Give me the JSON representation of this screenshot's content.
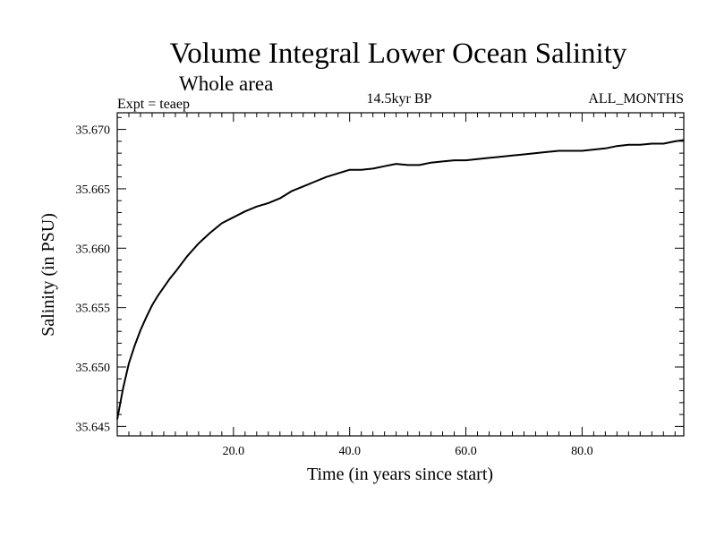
{
  "chart_data": {
    "type": "line",
    "title": "Volume Integral Lower Ocean Salinity",
    "subtitle": "Whole area",
    "experiment_label": "Expt = teaep",
    "period_label": "14.5kyr BP",
    "season_label": "ALL_MONTHS",
    "xlabel": "Time (in years since start)",
    "ylabel": "Salinity (in PSU)",
    "xlim": [
      0,
      97.5
    ],
    "ylim": [
      35.6442,
      35.6714
    ],
    "x_ticks": [
      20.0,
      40.0,
      60.0,
      80.0
    ],
    "x_tick_labels": [
      "20.0",
      "40.0",
      "60.0",
      "80.0"
    ],
    "y_ticks": [
      35.645,
      35.65,
      35.655,
      35.66,
      35.665,
      35.67
    ],
    "y_tick_labels": [
      "35.645",
      "35.650",
      "35.655",
      "35.660",
      "35.665",
      "35.670"
    ],
    "grid": false,
    "line_color": "#000000",
    "series": [
      {
        "name": "Salinity",
        "x": [
          0,
          1,
          2,
          3,
          4,
          5,
          6,
          7,
          8,
          9,
          10,
          12,
          14,
          16,
          18,
          20,
          22,
          24,
          26,
          28,
          30,
          32,
          34,
          36,
          38,
          40,
          42,
          44,
          46,
          48,
          50,
          52,
          54,
          56,
          58,
          60,
          62,
          64,
          66,
          68,
          70,
          72,
          74,
          76,
          78,
          80,
          82,
          84,
          86,
          88,
          90,
          92,
          94,
          96,
          97.5
        ],
        "values": [
          35.6456,
          35.6482,
          35.6503,
          35.6518,
          35.6531,
          35.6542,
          35.6552,
          35.656,
          35.6567,
          35.6574,
          35.658,
          35.6593,
          35.6604,
          35.6613,
          35.6621,
          35.6626,
          35.6631,
          35.6635,
          35.6638,
          35.6642,
          35.6648,
          35.6652,
          35.6656,
          35.666,
          35.6663,
          35.6666,
          35.6666,
          35.6667,
          35.6669,
          35.6671,
          35.667,
          35.667,
          35.6672,
          35.6673,
          35.6674,
          35.6674,
          35.6675,
          35.6676,
          35.6677,
          35.6678,
          35.6679,
          35.668,
          35.6681,
          35.6682,
          35.6682,
          35.6682,
          35.6683,
          35.6684,
          35.6686,
          35.6687,
          35.6687,
          35.6688,
          35.6688,
          35.669,
          35.6691
        ]
      }
    ]
  }
}
